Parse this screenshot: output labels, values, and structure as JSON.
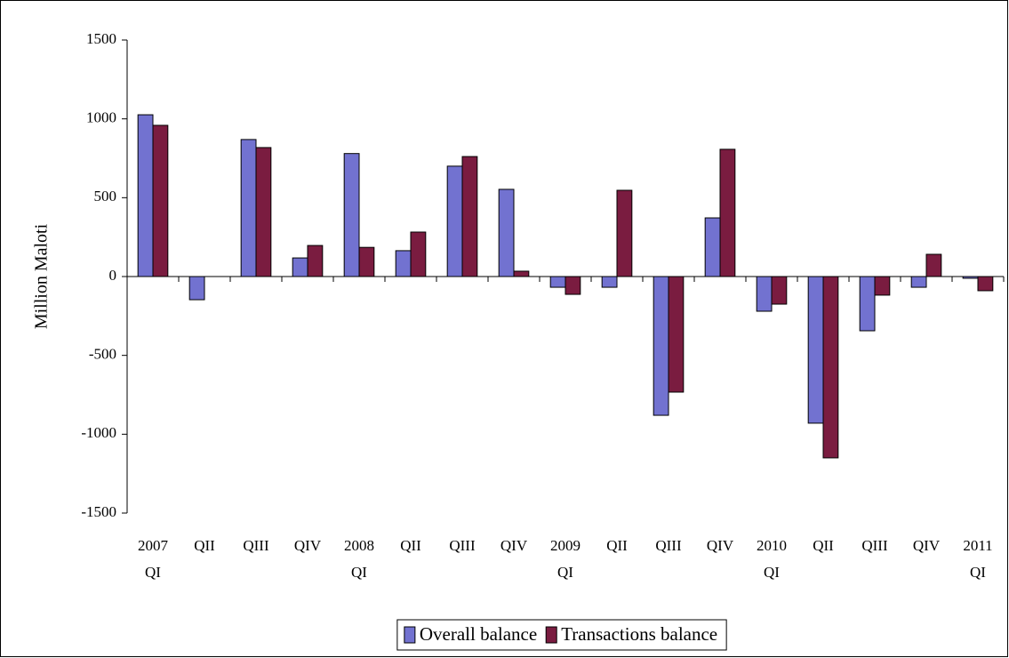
{
  "chart_data": {
    "type": "bar",
    "y_label": "Million Maloti",
    "categories": [
      "2007 QI",
      "QII",
      "QIII",
      "QIV",
      "2008 QI",
      "QII",
      "QIII",
      "QIV",
      "2009 QI",
      "QII",
      "QIII",
      "QIV",
      "2010 QI",
      "QII",
      "QIII",
      "QIV",
      "2011 QI"
    ],
    "series": [
      {
        "name": "Overall balance",
        "color": "#7272d0",
        "values": [
          1026,
          -147,
          869,
          118,
          780,
          164,
          700,
          553,
          -68,
          -68,
          -880,
          372,
          -220,
          -930,
          -344,
          -68,
          -11
        ]
      },
      {
        "name": "Transactions balance",
        "color": "#7a1c40",
        "values": [
          959,
          null,
          818,
          197,
          185,
          282,
          761,
          34,
          -113,
          547,
          -733,
          807,
          -175,
          -1150,
          -118,
          141,
          -90
        ]
      }
    ],
    "ylim": [
      -1500,
      1500
    ],
    "yticks": [
      -1500,
      -1000,
      -500,
      0,
      500,
      1000,
      1500
    ],
    "legend": "bottom"
  }
}
